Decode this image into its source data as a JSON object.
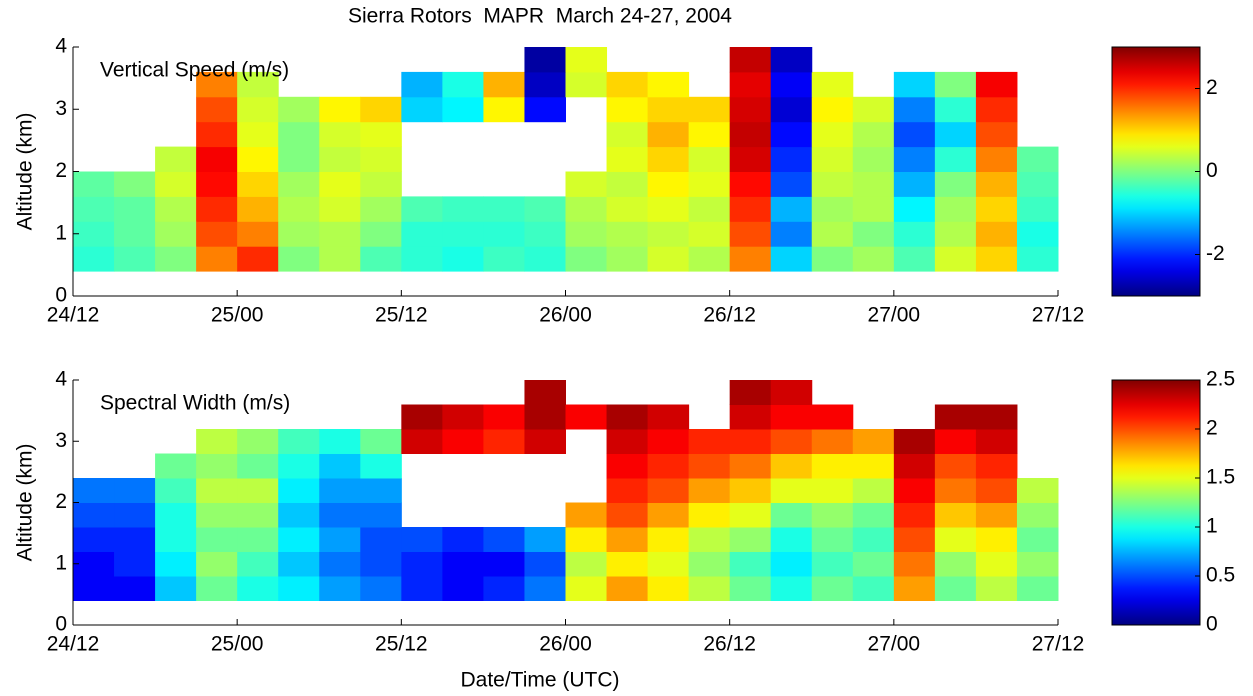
{
  "chart_data": [
    {
      "type": "heatmap",
      "title": "Sierra Rotors  MAPR  March 24-27, 2004",
      "label": "Vertical Speed (m/s)",
      "ylabel": "Altitude (km)",
      "colormap": "jet",
      "x": [
        1.5,
        4.5,
        7.5,
        10.5,
        13.5,
        16.5,
        19.5,
        22.5,
        25.5,
        28.5,
        31.5,
        34.5,
        37.5,
        40.5,
        43.5,
        46.5,
        49.5,
        52.5,
        55.5,
        58.5,
        61.5,
        64.5,
        67.5,
        70.5
      ],
      "y": [
        0.6,
        1.0,
        1.4,
        1.8,
        2.2,
        2.6,
        3.0,
        3.4,
        3.8
      ],
      "z": [
        [
          -0.5,
          -0.3,
          0,
          1.5,
          2,
          0,
          0.3,
          -0.3,
          -0.5,
          -0.6,
          -0.4,
          -0.5,
          0,
          0.2,
          0.5,
          0.3,
          1.5,
          -1,
          0,
          0.2,
          -0.3,
          0.5,
          1,
          -0.5
        ],
        [
          -0.4,
          -0.2,
          0.2,
          1.8,
          1.5,
          0.2,
          0.3,
          0,
          -0.5,
          -0.5,
          -0.5,
          -0.4,
          0.2,
          0.3,
          0.4,
          0.5,
          1.8,
          -1.5,
          0.3,
          0,
          -0.5,
          0.3,
          1.2,
          -0.6
        ],
        [
          -0.3,
          -0.2,
          0.3,
          2,
          1.2,
          0.3,
          0.5,
          0.2,
          -0.3,
          -0.4,
          -0.4,
          -0.3,
          0.3,
          0.5,
          0.6,
          0.4,
          2,
          -1.2,
          0.2,
          0.3,
          -0.8,
          0.2,
          1,
          -0.4
        ],
        [
          -0.2,
          0,
          0.5,
          2.2,
          1,
          0.2,
          0.6,
          0.4,
          null,
          null,
          null,
          null,
          0.5,
          0.4,
          0.8,
          0.6,
          2.2,
          -1.8,
          0.4,
          0.3,
          -1.2,
          0,
          1.2,
          -0.3
        ],
        [
          null,
          null,
          0.4,
          2.3,
          0.8,
          0,
          0.4,
          0.5,
          null,
          null,
          null,
          null,
          null,
          0.6,
          1,
          0.5,
          2.5,
          -2,
          0.5,
          0.2,
          -1.5,
          -0.5,
          1.5,
          -0.2
        ],
        [
          null,
          null,
          null,
          2,
          0.6,
          0,
          0.5,
          0.6,
          null,
          null,
          null,
          null,
          null,
          0.5,
          1.2,
          0.8,
          2.6,
          -2.2,
          0.6,
          0.3,
          -1.8,
          -1,
          1.8,
          null
        ],
        [
          null,
          null,
          null,
          1.8,
          0.5,
          0.2,
          0.8,
          1,
          -1,
          -0.8,
          0.8,
          -2.2,
          null,
          0.8,
          1,
          1,
          2.5,
          -2.5,
          0.8,
          0.5,
          -1.5,
          -0.5,
          2,
          null
        ],
        [
          null,
          null,
          null,
          1.5,
          0.4,
          null,
          null,
          null,
          -1.2,
          -0.6,
          1.2,
          -2.6,
          0.5,
          1,
          0.8,
          null,
          2.4,
          -2.3,
          0.6,
          null,
          -1,
          0,
          2.3,
          null
        ],
        [
          null,
          null,
          null,
          null,
          null,
          null,
          null,
          null,
          null,
          null,
          null,
          -2.8,
          0.6,
          null,
          null,
          null,
          2.6,
          -2.6,
          null,
          null,
          null,
          null,
          null,
          null
        ]
      ],
      "xlim": [
        0,
        72
      ],
      "xticks": [
        {
          "value": 0,
          "label": "24/12"
        },
        {
          "value": 12,
          "label": "25/00"
        },
        {
          "value": 24,
          "label": "25/12"
        },
        {
          "value": 36,
          "label": "26/00"
        },
        {
          "value": 48,
          "label": "26/12"
        },
        {
          "value": 60,
          "label": "27/00"
        },
        {
          "value": 72,
          "label": "27/12"
        }
      ],
      "ylim": [
        0,
        4
      ],
      "yticks": [
        0,
        1,
        2,
        3,
        4
      ],
      "clim": [
        -3,
        3
      ],
      "cticks": [
        -2,
        0,
        2
      ]
    },
    {
      "type": "heatmap",
      "label": "Spectral Width (m/s)",
      "ylabel": "Altitude (km)",
      "xlabel": "Date/Time (UTC)",
      "colormap": "jet",
      "x": [
        1.5,
        4.5,
        7.5,
        10.5,
        13.5,
        16.5,
        19.5,
        22.5,
        25.5,
        28.5,
        31.5,
        34.5,
        37.5,
        40.5,
        43.5,
        46.5,
        49.5,
        52.5,
        55.5,
        58.5,
        61.5,
        64.5,
        67.5,
        70.5
      ],
      "y": [
        0.6,
        1.0,
        1.4,
        1.8,
        2.2,
        2.6,
        3.0,
        3.4,
        3.8
      ],
      "z": [
        [
          0.3,
          0.3,
          0.8,
          1.2,
          1,
          0.9,
          0.7,
          0.6,
          0.4,
          0.3,
          0.4,
          0.6,
          1.5,
          1.8,
          1.6,
          1.4,
          1.2,
          1,
          1.2,
          1.1,
          1.8,
          1.2,
          1.4,
          1.2
        ],
        [
          0.3,
          0.4,
          0.9,
          1.3,
          1.1,
          0.8,
          0.6,
          0.5,
          0.4,
          0.3,
          0.3,
          0.5,
          1.4,
          1.6,
          1.5,
          1.3,
          1.1,
          0.9,
          1.1,
          1.2,
          1.9,
          1.3,
          1.5,
          1.3
        ],
        [
          0.4,
          0.4,
          1,
          1.2,
          1.2,
          0.9,
          0.7,
          0.5,
          0.5,
          0.4,
          0.5,
          0.7,
          1.6,
          1.8,
          1.6,
          1.4,
          1.3,
          1,
          1.2,
          1.1,
          2,
          1.5,
          1.6,
          1.2
        ],
        [
          0.5,
          0.5,
          1,
          1.3,
          1.3,
          0.8,
          0.6,
          0.6,
          null,
          null,
          null,
          null,
          1.8,
          2,
          1.8,
          1.6,
          1.5,
          1.2,
          1.3,
          1.2,
          2.1,
          1.7,
          1.8,
          1.3
        ],
        [
          0.6,
          0.6,
          1.1,
          1.4,
          1.4,
          0.9,
          0.7,
          0.7,
          null,
          null,
          null,
          null,
          null,
          2.1,
          2,
          1.8,
          1.7,
          1.5,
          1.5,
          1.4,
          2.2,
          1.9,
          2,
          1.4
        ],
        [
          null,
          null,
          1.2,
          1.3,
          1.2,
          1,
          0.8,
          1,
          null,
          null,
          null,
          null,
          null,
          2.2,
          2.1,
          2,
          1.9,
          1.7,
          1.6,
          1.6,
          2.3,
          2,
          2.1,
          null
        ],
        [
          null,
          null,
          null,
          1.4,
          1.3,
          1.1,
          1,
          1.2,
          2.3,
          2.2,
          2.1,
          2.3,
          null,
          2.3,
          2.2,
          2.1,
          2.1,
          2,
          1.9,
          1.8,
          2.4,
          2.2,
          2.3,
          null
        ],
        [
          null,
          null,
          null,
          null,
          null,
          null,
          null,
          null,
          2.4,
          2.3,
          2.2,
          2.4,
          2.2,
          2.4,
          2.3,
          null,
          2.3,
          2.2,
          2.2,
          null,
          null,
          2.4,
          2.4,
          null
        ],
        [
          null,
          null,
          null,
          null,
          null,
          null,
          null,
          null,
          null,
          null,
          null,
          2.4,
          null,
          null,
          null,
          null,
          2.4,
          2.3,
          null,
          null,
          null,
          null,
          null,
          null
        ]
      ],
      "xlim": [
        0,
        72
      ],
      "xticks": [
        {
          "value": 0,
          "label": "24/12"
        },
        {
          "value": 12,
          "label": "25/00"
        },
        {
          "value": 24,
          "label": "25/12"
        },
        {
          "value": 36,
          "label": "26/00"
        },
        {
          "value": 48,
          "label": "26/12"
        },
        {
          "value": 60,
          "label": "27/00"
        },
        {
          "value": 72,
          "label": "27/12"
        }
      ],
      "ylim": [
        0,
        4
      ],
      "yticks": [
        0,
        1,
        2,
        3,
        4
      ],
      "clim": [
        0,
        2.5
      ],
      "cticks": [
        0,
        0.5,
        1,
        1.5,
        2,
        2.5
      ]
    }
  ]
}
